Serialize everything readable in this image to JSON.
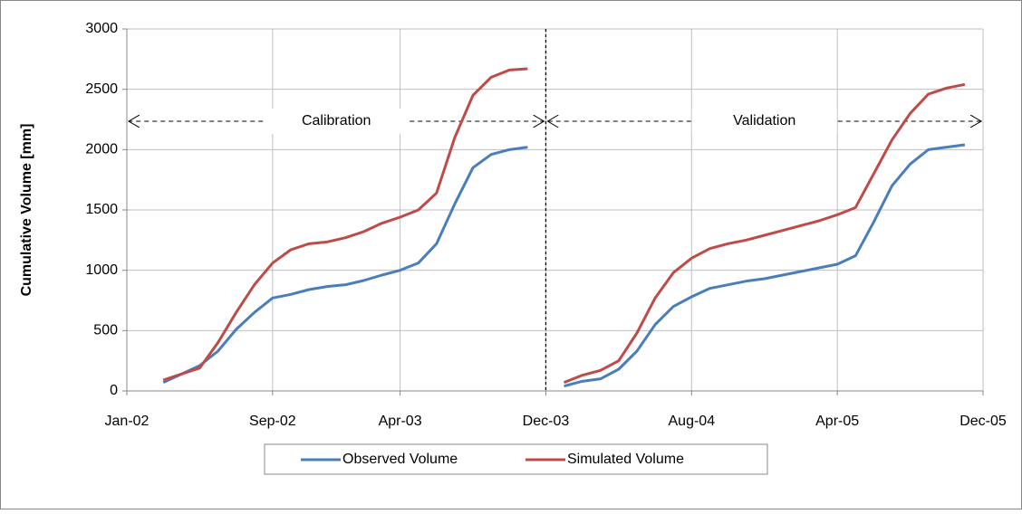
{
  "chart_data": {
    "type": "line",
    "y_label": "Cumulative Volume [mm]",
    "x": [
      "2002-03",
      "2002-04",
      "2002-05",
      "2002-06",
      "2002-07",
      "2002-08",
      "2002-09",
      "2002-10",
      "2002-11",
      "2002-12",
      "2003-01",
      "2003-02",
      "2003-03",
      "2003-04",
      "2003-05",
      "2003-06",
      "2003-07",
      "2003-08",
      "2003-09",
      "2003-10",
      "2003-11",
      "2003-12",
      "2004-01",
      "2004-02",
      "2004-03",
      "2004-04",
      "2004-05",
      "2004-06",
      "2004-07",
      "2004-08",
      "2004-09",
      "2004-10",
      "2004-11",
      "2004-12",
      "2005-01",
      "2005-02",
      "2005-03",
      "2005-04",
      "2005-05",
      "2005-06",
      "2005-07",
      "2005-08",
      "2005-09",
      "2005-10",
      "2005-11"
    ],
    "series": [
      {
        "name": "Observed Volume",
        "color": "#4a7ebb",
        "values": [
          70,
          140,
          210,
          330,
          510,
          650,
          770,
          800,
          840,
          865,
          880,
          915,
          960,
          1000,
          1060,
          1220,
          1550,
          1850,
          1960,
          2000,
          2020,
          null,
          40,
          80,
          100,
          180,
          330,
          550,
          700,
          780,
          850,
          880,
          910,
          930,
          960,
          990,
          1020,
          1050,
          1120,
          1400,
          1700,
          1880,
          2000,
          2020,
          2040
        ]
      },
      {
        "name": "Simulated Volume",
        "color": "#be4b48",
        "values": [
          90,
          140,
          190,
          400,
          650,
          880,
          1060,
          1170,
          1220,
          1235,
          1270,
          1320,
          1390,
          1440,
          1500,
          1640,
          2100,
          2450,
          2600,
          2660,
          2670,
          null,
          70,
          130,
          170,
          250,
          480,
          770,
          980,
          1100,
          1180,
          1220,
          1250,
          1290,
          1330,
          1370,
          1410,
          1460,
          1520,
          1800,
          2080,
          2300,
          2460,
          2510,
          2540
        ]
      }
    ],
    "xlim": [
      "2002-01",
      "2005-12"
    ],
    "xticks": [
      {
        "value": "2002-01",
        "label": "Jan-02"
      },
      {
        "value": "2002-09",
        "label": "Sep-02"
      },
      {
        "value": "2003-04",
        "label": "Apr-03"
      },
      {
        "value": "2003-12",
        "label": "Dec-03"
      },
      {
        "value": "2004-08",
        "label": "Aug-04"
      },
      {
        "value": "2005-04",
        "label": "Apr-05"
      },
      {
        "value": "2005-12",
        "label": "Dec-05"
      }
    ],
    "ylim": [
      0,
      3000
    ],
    "yticks": [
      0,
      500,
      1000,
      1500,
      2000,
      2500,
      3000
    ],
    "grid": true,
    "legend": "bottom",
    "periods": [
      {
        "label": "Calibration",
        "start": "2002-01",
        "end": "2003-12"
      },
      {
        "label": "Validation",
        "start": "2003-12",
        "end": "2005-12"
      }
    ]
  }
}
